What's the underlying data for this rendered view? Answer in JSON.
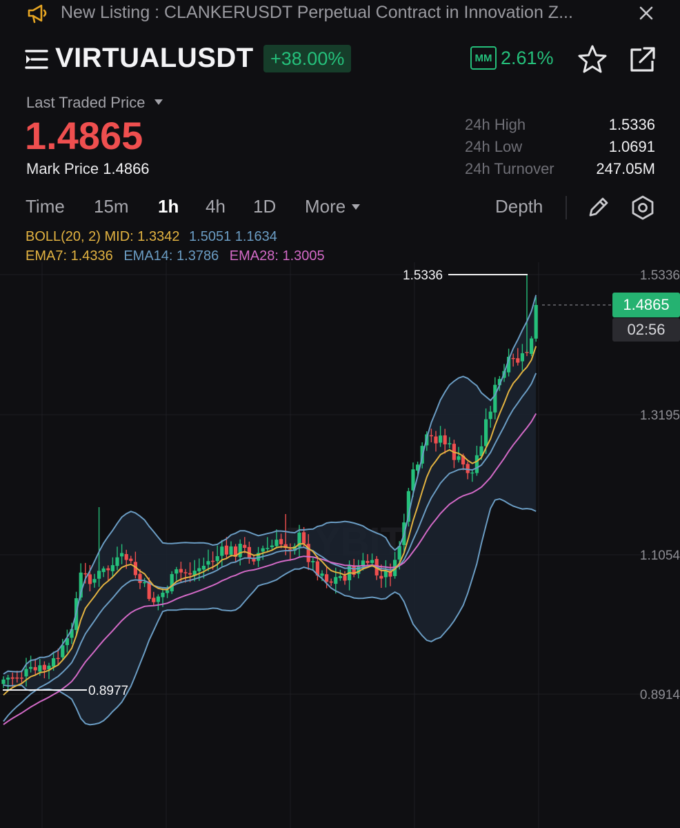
{
  "banner": {
    "text": "New Listing : CLANKERUSDT Perpetual Contract in Innovation Z...",
    "icon": "megaphone-icon",
    "close_icon": "close-icon",
    "accent": "#e7a623"
  },
  "header": {
    "symbol": "VIRTUALUSDT",
    "change": "+38.00%",
    "mm_label": "MM",
    "mm_value": "2.61%"
  },
  "price": {
    "last_traded_label": "Last Traded Price",
    "last_traded": "1.4865",
    "mark_label": "Mark Price",
    "mark_value": "1.4866"
  },
  "stats": [
    {
      "label": "24h High",
      "value": "1.5336"
    },
    {
      "label": "24h Low",
      "value": "1.0691"
    },
    {
      "label": "24h Turnover",
      "value": "247.05M"
    }
  ],
  "timeframes": {
    "time": "Time",
    "m15": "15m",
    "h1": "1h",
    "h4": "4h",
    "d1": "1D",
    "more": "More",
    "depth": "Depth",
    "active": "1h"
  },
  "indicators": {
    "boll_label": "BOLL(20, 2) MID:",
    "boll_mid": "1.3342",
    "boll_up": "1.5051",
    "boll_dn": "1.1634",
    "ema7_label": "EMA7:",
    "ema7": "1.4336",
    "ema14_label": "EMA14:",
    "ema14": "1.3786",
    "ema28_label": "EMA28:",
    "ema28": "1.3005"
  },
  "chart": {
    "y_ticks": [
      "1.5336",
      "1.3195",
      "1.1054",
      "0.8914"
    ],
    "high_marker": "1.5336",
    "low_marker": "0.8977",
    "current_price": "1.4865",
    "countdown": "02:56",
    "watermark": "BYBIT",
    "colors": {
      "up": "#25c07b",
      "down": "#ef4f4f",
      "boll": "#6b9dc4",
      "ema7": "#e3b341",
      "ema14": "#6b9dc4",
      "ema28": "#d36ac7"
    }
  }
}
